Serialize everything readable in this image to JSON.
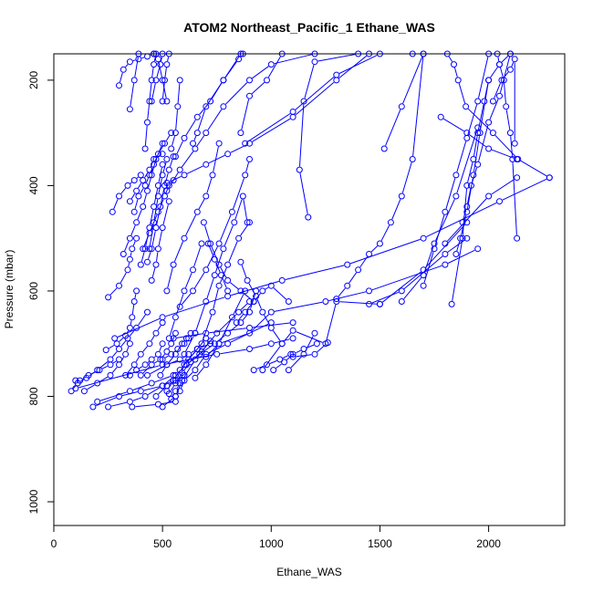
{
  "chart_data": {
    "type": "line",
    "title": "ATOM2 Northeast_Pacific_1 Ethane_WAS",
    "xlabel": "Ethane_WAS",
    "ylabel": "Pressure (mbar)",
    "xlim": [
      0,
      2350
    ],
    "ylim": [
      1045,
      150
    ],
    "y_reversed": true,
    "x_ticks": [
      0,
      500,
      1000,
      1500,
      2000
    ],
    "x_tick_labels": [
      "0",
      "500",
      "1000",
      "1500",
      "2000"
    ],
    "y_ticks": [
      200,
      400,
      600,
      800,
      1000
    ],
    "y_tick_labels": [
      "200",
      "400",
      "600",
      "800",
      "1000"
    ],
    "grid": false,
    "legend": "none",
    "colors": {
      "series": "#0000ff",
      "axis": "#000000"
    },
    "series": [
      {
        "x": [
          2280,
          2135,
          2020,
          1895,
          1860,
          1840,
          1810
        ],
        "y": [
          385,
          350,
          300,
          250,
          200,
          170,
          150
        ]
      },
      {
        "x": [
          2130,
          2110,
          2100,
          2080,
          2070,
          2050,
          2040
        ],
        "y": [
          500,
          350,
          300,
          250,
          200,
          170,
          150
        ]
      },
      {
        "x": [
          1830,
          1880,
          1900,
          1930,
          1950,
          1980,
          2000,
          2050,
          2100
        ],
        "y": [
          625,
          500,
          400,
          350,
          300,
          240,
          200,
          170,
          150
        ]
      },
      {
        "x": [
          1700,
          1750,
          1800,
          1850,
          1900,
          1950,
          2000
        ],
        "y": [
          590,
          520,
          450,
          380,
          310,
          240,
          150
        ]
      },
      {
        "x": [
          1300,
          1350,
          1400,
          1450,
          1500,
          1550,
          1600,
          1650,
          1700
        ],
        "y": [
          615,
          590,
          560,
          530,
          510,
          470,
          420,
          350,
          150
        ]
      },
      {
        "x": [
          960,
          1050,
          1100,
          1250,
          1300,
          1500
        ],
        "y": [
          750,
          700,
          675,
          700,
          620,
          625
        ]
      },
      {
        "x": [
          1260,
          1200,
          1100
        ],
        "y": [
          698,
          720,
          725
        ]
      },
      {
        "x": [
          1080,
          1150,
          1200
        ],
        "y": [
          750,
          720,
          680
        ]
      },
      {
        "x": [
          1170,
          1130,
          1150,
          1200,
          1400
        ],
        "y": [
          460,
          370,
          240,
          165,
          150
        ]
      },
      {
        "x": [
          880,
          1100,
          1300,
          1500,
          1650
        ],
        "y": [
          320,
          260,
          190,
          150,
          150
        ]
      },
      {
        "x": [
          860,
          900,
          980,
          1050
        ],
        "y": [
          300,
          230,
          200,
          150
        ]
      },
      {
        "x": [
          1800,
          2000,
          2130
        ],
        "y": [
          510,
          420,
          385
        ]
      },
      {
        "x": [
          1500,
          1700,
          1900
        ],
        "y": [
          625,
          560,
          470
        ]
      },
      {
        "x": [
          1450,
          1600,
          1800,
          1900
        ],
        "y": [
          625,
          600,
          530,
          500
        ]
      },
      {
        "x": [
          1600,
          1700,
          1750,
          1850,
          1950
        ],
        "y": [
          620,
          570,
          510,
          420,
          290
        ]
      },
      {
        "x": [
          1880,
          1900,
          1920,
          1950,
          2000,
          2050,
          2100
        ],
        "y": [
          470,
          440,
          400,
          360,
          280,
          230,
          150
        ]
      },
      {
        "x": [
          1850,
          1870,
          1900,
          1930,
          1960,
          2000
        ],
        "y": [
          530,
          500,
          450,
          380,
          300,
          200
        ]
      },
      {
        "x": [
          1780,
          1900,
          2000,
          2130
        ],
        "y": [
          270,
          300,
          330,
          350
        ]
      },
      {
        "x": [
          2020,
          2060,
          2100,
          2120,
          2120
        ],
        "y": [
          240,
          200,
          180,
          160,
          320
        ]
      },
      {
        "x": [
          1520,
          1600,
          1700
        ],
        "y": [
          330,
          250,
          150
        ]
      },
      {
        "x": [
          700,
          760,
          900,
          1000,
          1250,
          1450,
          1800,
          1950
        ],
        "y": [
          725,
          700,
          680,
          640,
          620,
          600,
          550,
          520
        ]
      },
      {
        "x": [
          280,
          500,
          800,
          1050,
          1350,
          1700,
          2050,
          2280
        ],
        "y": [
          690,
          650,
          610,
          580,
          550,
          500,
          430,
          385
        ]
      },
      {
        "x": [
          100,
          500,
          750,
          900,
          1000,
          1100
        ],
        "y": [
          785,
          740,
          720,
          710,
          700,
          690
        ]
      },
      {
        "x": [
          550,
          700,
          900,
          1100
        ],
        "y": [
          690,
          680,
          670,
          660
        ]
      },
      {
        "x": [
          430,
          520,
          580,
          620,
          660,
          720
        ],
        "y": [
          760,
          740,
          730,
          720,
          710,
          700
        ]
      },
      {
        "x": [
          470,
          520,
          560,
          600
        ],
        "y": [
          800,
          780,
          770,
          760
        ]
      },
      {
        "x": [
          500,
          560,
          580,
          600,
          650,
          700,
          800,
          1000
        ],
        "y": [
          820,
          800,
          790,
          770,
          750,
          720,
          700,
          660
        ]
      },
      {
        "x": [
          560,
          590,
          650,
          750,
          850,
          900
        ],
        "y": [
          800,
          770,
          730,
          680,
          640,
          620
        ]
      },
      {
        "x": [
          650,
          700,
          760,
          820,
          880
        ],
        "y": [
          765,
          740,
          700,
          650,
          600
        ]
      },
      {
        "x": [
          180,
          300,
          400,
          500,
          550
        ],
        "y": [
          820,
          800,
          790,
          780,
          770
        ]
      },
      {
        "x": [
          200,
          350,
          450,
          550
        ],
        "y": [
          810,
          790,
          775,
          760
        ]
      },
      {
        "x": [
          250,
          350,
          420,
          500,
          560
        ],
        "y": [
          820,
          810,
          800,
          780,
          760
        ]
      },
      {
        "x": [
          360,
          480,
          560
        ],
        "y": [
          820,
          815,
          810
        ]
      },
      {
        "x": [
          80,
          110,
          150,
          200,
          260,
          300,
          340,
          380,
          430
        ],
        "y": [
          790,
          775,
          765,
          750,
          730,
          710,
          690,
          670,
          640
        ]
      },
      {
        "x": [
          100,
          120,
          160,
          210,
          260,
          300
        ],
        "y": [
          770,
          770,
          760,
          750,
          740,
          730
        ]
      },
      {
        "x": [
          140,
          200,
          260,
          300,
          330,
          350
        ],
        "y": [
          790,
          775,
          760,
          740,
          720,
          700
        ]
      },
      {
        "x": [
          240,
          290,
          330,
          350,
          360,
          370,
          380
        ],
        "y": [
          712,
          700,
          685,
          670,
          650,
          620,
          600
        ]
      },
      {
        "x": [
          330,
          370,
          400,
          440,
          470,
          500
        ],
        "y": [
          760,
          740,
          720,
          700,
          680,
          660
        ]
      },
      {
        "x": [
          350,
          380,
          420,
          450,
          480,
          500
        ],
        "y": [
          760,
          750,
          740,
          730,
          720,
          700
        ]
      },
      {
        "x": [
          400,
          450,
          490,
          520,
          540,
          560
        ],
        "y": [
          760,
          740,
          730,
          715,
          700,
          680
        ]
      },
      {
        "x": [
          250,
          300,
          340,
          350,
          360,
          380
        ],
        "y": [
          612,
          590,
          560,
          540,
          520,
          500
        ]
      },
      {
        "x": [
          270,
          300,
          340,
          370,
          400
        ],
        "y": [
          450,
          420,
          400,
          390,
          380
        ]
      },
      {
        "x": [
          320,
          350,
          380,
          410,
          430,
          450,
          470,
          500
        ],
        "y": [
          530,
          500,
          470,
          440,
          410,
          380,
          350,
          320
        ]
      },
      {
        "x": [
          350,
          380,
          410,
          440,
          460,
          500
        ],
        "y": [
          430,
          410,
          390,
          370,
          350,
          340
        ]
      },
      {
        "x": [
          370,
          390,
          420,
          440,
          460,
          480,
          510,
          540
        ],
        "y": [
          450,
          420,
          400,
          380,
          360,
          340,
          320,
          300
        ]
      },
      {
        "x": [
          400,
          420,
          440,
          460,
          480,
          500
        ],
        "y": [
          550,
          520,
          480,
          440,
          400,
          360
        ]
      },
      {
        "x": [
          430,
          450,
          470,
          490,
          510,
          530,
          550
        ],
        "y": [
          545,
          520,
          480,
          440,
          400,
          370,
          345
        ]
      },
      {
        "x": [
          410,
          440,
          480,
          510,
          530,
          550
        ],
        "y": [
          520,
          490,
          450,
          420,
          400,
          390
        ]
      },
      {
        "x": [
          440,
          460,
          480,
          500,
          520
        ],
        "y": [
          520,
          470,
          420,
          380,
          350
        ]
      },
      {
        "x": [
          450,
          470,
          480,
          500,
          530
        ],
        "y": [
          580,
          550,
          520,
          480,
          430
        ]
      },
      {
        "x": [
          300,
          320,
          350,
          390,
          430,
          460
        ],
        "y": [
          210,
          180,
          165,
          160,
          155,
          150
        ]
      },
      {
        "x": [
          350,
          370,
          390
        ],
        "y": [
          255,
          200,
          150
        ]
      },
      {
        "x": [
          420,
          430,
          440,
          450,
          460,
          470
        ],
        "y": [
          330,
          280,
          240,
          200,
          170,
          150
        ]
      },
      {
        "x": [
          450,
          470,
          490,
          500
        ],
        "y": [
          240,
          200,
          170,
          150
        ]
      },
      {
        "x": [
          500,
          510,
          520,
          530
        ],
        "y": [
          240,
          200,
          170,
          150
        ]
      },
      {
        "x": [
          460,
          480,
          500,
          520
        ],
        "y": [
          150,
          160,
          200,
          240
        ]
      },
      {
        "x": [
          540,
          560,
          570,
          580
        ],
        "y": [
          330,
          300,
          250,
          200
        ]
      },
      {
        "x": [
          560,
          600,
          660,
          720,
          780,
          860
        ],
        "y": [
          345,
          310,
          270,
          240,
          200,
          150
        ]
      },
      {
        "x": [
          520,
          580,
          650,
          700,
          780,
          900,
          1000,
          1200
        ],
        "y": [
          410,
          370,
          330,
          300,
          250,
          200,
          170,
          150
        ]
      },
      {
        "x": [
          520,
          600,
          700,
          800,
          900,
          1100,
          1300,
          1450
        ],
        "y": [
          395,
          380,
          360,
          340,
          320,
          270,
          200,
          150
        ]
      },
      {
        "x": [
          640,
          660,
          700,
          780,
          850,
          870
        ],
        "y": [
          320,
          300,
          250,
          200,
          160,
          150
        ]
      },
      {
        "x": [
          520,
          550,
          600,
          660,
          700,
          730,
          760
        ],
        "y": [
          600,
          550,
          500,
          450,
          420,
          380,
          320
        ]
      },
      {
        "x": [
          530,
          560,
          600,
          640,
          680
        ],
        "y": [
          690,
          650,
          600,
          560,
          510
        ]
      },
      {
        "x": [
          580,
          640,
          700,
          760,
          820,
          880,
          900
        ],
        "y": [
          630,
          600,
          560,
          510,
          450,
          380,
          350
        ]
      },
      {
        "x": [
          600,
          650,
          700,
          740,
          780,
          830,
          870,
          890
        ],
        "y": [
          720,
          680,
          620,
          570,
          520,
          470,
          420,
          470
        ]
      },
      {
        "x": [
          600,
          680,
          730,
          760,
          800,
          850,
          900
        ],
        "y": [
          740,
          700,
          640,
          590,
          550,
          500,
          470
        ]
      },
      {
        "x": [
          690,
          720,
          760,
          800,
          860,
          920
        ],
        "y": [
          470,
          510,
          550,
          580,
          600,
          620
        ]
      },
      {
        "x": [
          710,
          740,
          770,
          800
        ],
        "y": [
          510,
          540,
          570,
          600
        ]
      },
      {
        "x": [
          560,
          610,
          670,
          740,
          800,
          860,
          900,
          930
        ],
        "y": [
          760,
          740,
          720,
          700,
          680,
          660,
          640,
          600
        ]
      },
      {
        "x": [
          860,
          890,
          930,
          960,
          1000,
          1050
        ],
        "y": [
          545,
          580,
          610,
          640,
          670,
          700
        ]
      },
      {
        "x": [
          840,
          880,
          920,
          960,
          1000,
          1080
        ],
        "y": [
          660,
          640,
          620,
          600,
          590,
          620
        ]
      },
      {
        "x": [
          500,
          540,
          570,
          600,
          620,
          650
        ],
        "y": [
          730,
          720,
          710,
          700,
          690,
          680
        ]
      },
      {
        "x": [
          490,
          520,
          560,
          590,
          610,
          630
        ],
        "y": [
          760,
          740,
          720,
          700,
          690,
          680
        ]
      },
      {
        "x": [
          520,
          550,
          580,
          620,
          660,
          700
        ],
        "y": [
          790,
          770,
          750,
          730,
          710,
          690
        ]
      },
      {
        "x": [
          530,
          560,
          590,
          630,
          680,
          720
        ],
        "y": [
          795,
          775,
          755,
          735,
          715,
          695
        ]
      },
      {
        "x": [
          540,
          560,
          580,
          600
        ],
        "y": [
          805,
          790,
          775,
          760
        ]
      },
      {
        "x": [
          920,
          980,
          1040,
          1090
        ],
        "y": [
          750,
          740,
          730,
          720
        ]
      },
      {
        "x": [
          1010,
          1060,
          1100,
          1150,
          1210
        ],
        "y": [
          750,
          735,
          720,
          710,
          700
        ]
      }
    ]
  }
}
